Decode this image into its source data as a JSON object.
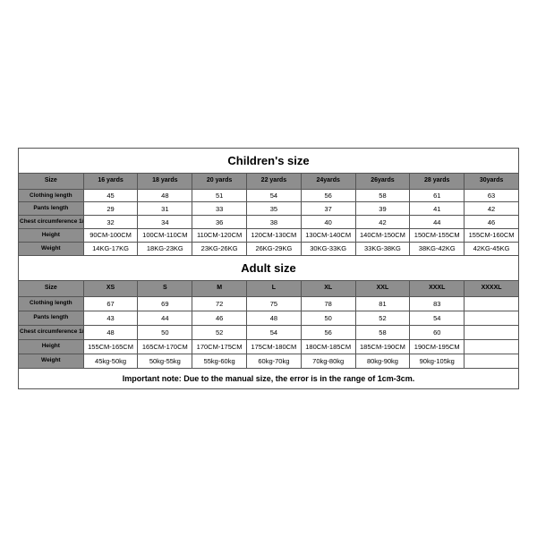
{
  "children": {
    "title": "Children's size",
    "headers": [
      "Size",
      "16 yards",
      "18 yards",
      "20 yards",
      "22 yards",
      "24yards",
      "26yards",
      "28 yards",
      "30yards"
    ],
    "rows": [
      {
        "label": "Clothing length",
        "cells": [
          "45",
          "48",
          "51",
          "54",
          "56",
          "58",
          "61",
          "63"
        ]
      },
      {
        "label": "Pants length",
        "cells": [
          "29",
          "31",
          "33",
          "35",
          "37",
          "39",
          "41",
          "42"
        ]
      },
      {
        "label": "Chest circumference 1/2",
        "cells": [
          "32",
          "34",
          "36",
          "38",
          "40",
          "42",
          "44",
          "46"
        ]
      },
      {
        "label": "Height",
        "cells": [
          "90CM-100CM",
          "100CM-110CM",
          "110CM-120CM",
          "120CM-130CM",
          "130CM-140CM",
          "140CM-150CM",
          "150CM-155CM",
          "155CM-160CM"
        ]
      },
      {
        "label": "Weight",
        "cells": [
          "14KG-17KG",
          "18KG-23KG",
          "23KG-26KG",
          "26KG-29KG",
          "30KG-33KG",
          "33KG-38KG",
          "38KG-42KG",
          "42KG-45KG"
        ]
      }
    ]
  },
  "adult": {
    "title": "Adult size",
    "headers": [
      "Size",
      "XS",
      "S",
      "M",
      "L",
      "XL",
      "XXL",
      "XXXL",
      "XXXXL"
    ],
    "rows": [
      {
        "label": "Clothing length",
        "cells": [
          "67",
          "69",
          "72",
          "75",
          "78",
          "81",
          "83",
          ""
        ]
      },
      {
        "label": "Pants length",
        "cells": [
          "43",
          "44",
          "46",
          "48",
          "50",
          "52",
          "54",
          ""
        ]
      },
      {
        "label": "Chest circumference 1/2",
        "cells": [
          "48",
          "50",
          "52",
          "54",
          "56",
          "58",
          "60",
          ""
        ]
      },
      {
        "label": "Height",
        "cells": [
          "155CM-165CM",
          "165CM-170CM",
          "170CM-175CM",
          "175CM-180CM",
          "180CM-185CM",
          "185CM-190CM",
          "190CM-195CM",
          ""
        ]
      },
      {
        "label": "Weight",
        "cells": [
          "45kg-50kg",
          "50kg-55kg",
          "55kg-60kg",
          "60kg-70kg",
          "70kg-80kg",
          "80kg-90kg",
          "90kg-105kg",
          ""
        ]
      }
    ],
    "note": "Important note: Due to the manual size, the error is in the range of 1cm-3cm."
  },
  "colors": {
    "header_bg": "#8e8e8e",
    "border": "#555555",
    "bg": "#ffffff"
  }
}
